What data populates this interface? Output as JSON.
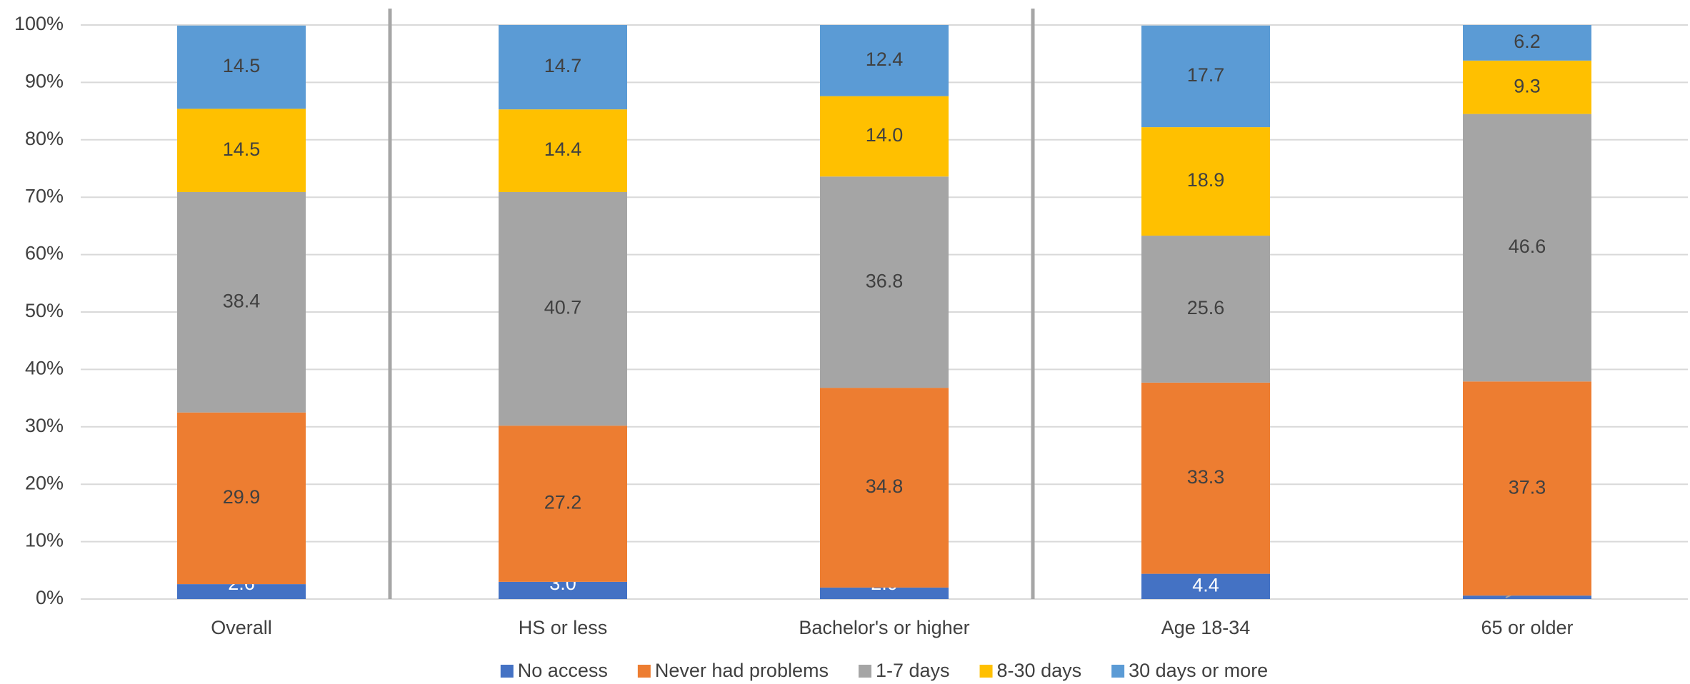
{
  "chart_data": {
    "type": "stacked-bar",
    "categories": [
      "Overall",
      "HS or less",
      "Bachelor's or higher",
      "Age 18-34",
      "65 or older"
    ],
    "series": [
      {
        "name": "No access",
        "color": "#4472c4",
        "values": [
          2.6,
          3,
          2,
          4.4,
          0.6
        ],
        "value_labels": [
          "2.6",
          "3.0",
          "2.0",
          "4.4",
          "0.6"
        ]
      },
      {
        "name": "Never had problems",
        "color": "#ed7d31",
        "values": [
          29.9,
          27.2,
          34.8,
          33.3,
          37.3
        ],
        "value_labels": [
          "29.9",
          "27.2",
          "34.8",
          "33.3",
          "37.3"
        ]
      },
      {
        "name": "1-7 days",
        "color": "#a5a5a5",
        "values": [
          38.4,
          40.7,
          36.8,
          25.6,
          46.6
        ],
        "value_labels": [
          "38.4",
          "40.7",
          "36.8",
          "25.6",
          "46.6"
        ]
      },
      {
        "name": "8-30 days",
        "color": "#ffc000",
        "values": [
          14.5,
          14.4,
          14,
          18.9,
          9.3
        ],
        "value_labels": [
          "14.5",
          "14.4",
          "14.0",
          "18.9",
          "9.3"
        ]
      },
      {
        "name": "30 days or more",
        "color": "#5b9bd5",
        "values": [
          14.5,
          14.7,
          12.4,
          17.7,
          6.2
        ],
        "value_labels": [
          "14.5",
          "14.7",
          "12.4",
          "17.7",
          "6.2"
        ]
      }
    ],
    "ylim": [
      0,
      100
    ],
    "yticks": [
      {
        "value": 0,
        "label": "0%"
      },
      {
        "value": 10,
        "label": "10%"
      },
      {
        "value": 20,
        "label": "20%"
      },
      {
        "value": 30,
        "label": "30%"
      },
      {
        "value": 40,
        "label": "40%"
      },
      {
        "value": 50,
        "label": "50%"
      },
      {
        "value": 60,
        "label": "60%"
      },
      {
        "value": 70,
        "label": "70%"
      },
      {
        "value": 80,
        "label": "80%"
      },
      {
        "value": 90,
        "label": "90%"
      },
      {
        "value": 100,
        "label": "100%"
      }
    ],
    "grid": true,
    "legend": "bottom"
  }
}
